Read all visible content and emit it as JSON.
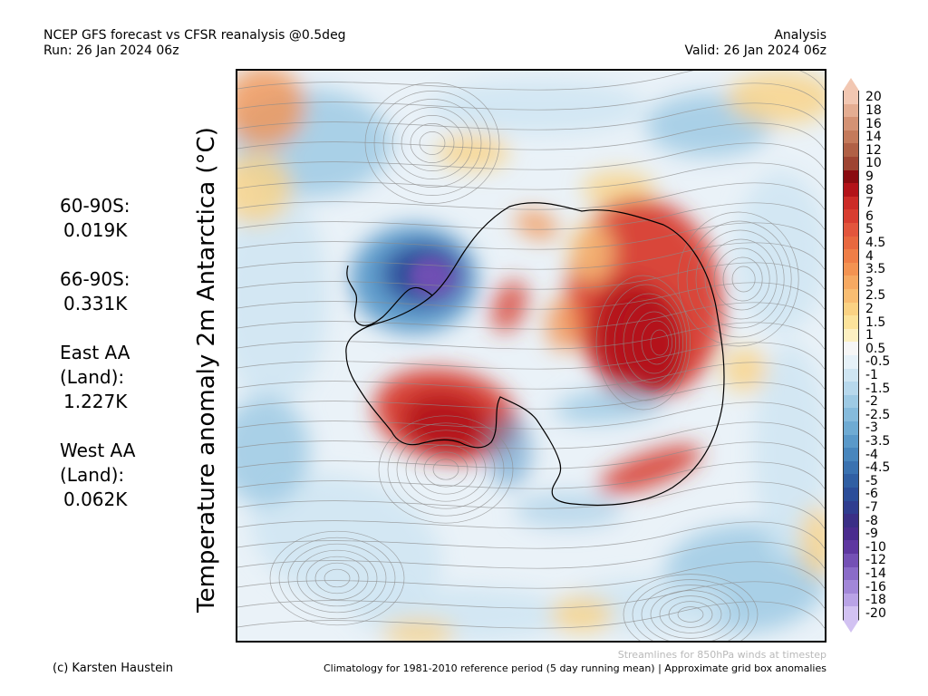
{
  "header": {
    "title_line1": "NCEP GFS forecast vs CFSR reanalysis @0.5deg",
    "title_line2": "Run: 26 Jan 2024 06z",
    "right_line1": "Analysis",
    "right_line2": "Valid: 26 Jan 2024 06z"
  },
  "axis_label": "Temperature anomaly 2m Antarctica (°C)",
  "stats": [
    {
      "label": "60-90S:",
      "value": "0.019K"
    },
    {
      "label": "66-90S:",
      "value": "0.331K"
    },
    {
      "label_lines": [
        "East AA",
        "(Land):"
      ],
      "value": "1.227K"
    },
    {
      "label_lines": [
        "West AA",
        "(Land):"
      ],
      "value": "0.062K"
    }
  ],
  "colorbar": {
    "labels": [
      "20",
      "18",
      "16",
      "14",
      "12",
      "10",
      "9",
      "8",
      "7",
      "6",
      "5",
      "4.5",
      "4",
      "3.5",
      "3",
      "2.5",
      "2",
      "1.5",
      "1",
      "0.5",
      "-0.5",
      "-1",
      "-1.5",
      "-2",
      "-2.5",
      "-3",
      "-3.5",
      "-4",
      "-4.5",
      "-5",
      "-6",
      "-7",
      "-8",
      "-9",
      "-10",
      "-12",
      "-14",
      "-16",
      "-18",
      "-20"
    ],
    "colors": [
      "#f2c7b2",
      "#e4ad92",
      "#d49274",
      "#c47a5b",
      "#b06045",
      "#9e4432",
      "#8a0b10",
      "#b31319",
      "#cc2b27",
      "#d83d30",
      "#e2553c",
      "#e8683f",
      "#ef7e47",
      "#f39352",
      "#f6a962",
      "#f8bd72",
      "#fad283",
      "#fce39b",
      "#fdf0c2",
      "#f6f6f6",
      "#e6f1f8",
      "#cfe5f2",
      "#b7d8ec",
      "#9ecae4",
      "#86bbdc",
      "#6fabd3",
      "#5a99c9",
      "#4886bd",
      "#3a72b0",
      "#305fa3",
      "#2b4d99",
      "#2f3d8f",
      "#3a2f86",
      "#4a2c8e",
      "#5e37a0",
      "#7450b5",
      "#8a6bc8",
      "#a287d8",
      "#b9a3e6",
      "#d2c2f2"
    ]
  },
  "map": {
    "palette": {
      "ocean": "#eaf2f8",
      "light_blue": "#cfe5f2",
      "mid_blue": "#9ecae4",
      "blue": "#5a99c9",
      "dark_blue": "#2b4d99",
      "purple": "#7450b5",
      "light_orange": "#fad283",
      "orange": "#f39352",
      "red": "#d83d30",
      "dark_red": "#b31319",
      "coast": "#000000",
      "streamline": "#8c8c8c"
    }
  },
  "footer": {
    "attribution": "(c) Karsten Haustein",
    "streamline_note": "Streamlines for 850hPa winds at timestep",
    "climatology_note": "Climatology for 1981-2010 reference period (5 day running mean) | Approximate grid box anomalies"
  }
}
